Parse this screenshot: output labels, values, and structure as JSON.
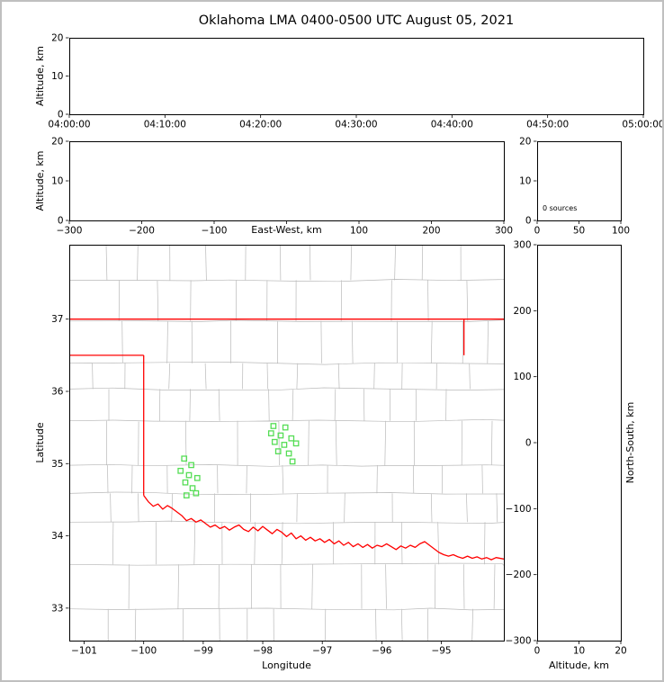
{
  "title": "Oklahoma LMA 0400-0500 UTC August 05, 2021",
  "colors": {
    "background": "#ffffff",
    "frame_border": "#bfbfbf",
    "axis": "#000000",
    "county_lines": "#b9b9b9",
    "state_borders": "#ff0000",
    "stations": "#55dd55"
  },
  "chart_data": [
    {
      "id": "time_height",
      "type": "scatter",
      "xlabel": "",
      "ylabel": "Altitude, km",
      "xlim": [
        0,
        6
      ],
      "xticks": [
        0,
        1,
        2,
        3,
        4,
        5,
        6
      ],
      "xtick_labels": [
        "04:00:00",
        "04:10:00",
        "04:20:00",
        "04:30:00",
        "04:40:00",
        "04:50:00",
        "05:00:00"
      ],
      "ylim": [
        0,
        20
      ],
      "yticks": [
        0,
        10,
        20
      ],
      "points": []
    },
    {
      "id": "ew_height",
      "type": "scatter",
      "xlabel": "East-West, km",
      "ylabel": "Altitude, km",
      "xlim": [
        -300,
        300
      ],
      "xticks": [
        -300,
        -200,
        -100,
        0,
        100,
        200,
        300
      ],
      "xtick_labels": [
        "−300",
        "−200",
        "−100",
        "",
        "100",
        "200",
        "300"
      ],
      "ylim": [
        0,
        20
      ],
      "yticks": [
        0,
        10,
        20
      ],
      "points": []
    },
    {
      "id": "alt_histogram",
      "type": "line",
      "annotation": "0 sources",
      "xlim": [
        0,
        100
      ],
      "xticks": [
        0,
        50,
        100
      ],
      "ylim": [
        0,
        20
      ],
      "yticks": [
        0,
        10,
        20
      ],
      "points": []
    },
    {
      "id": "plan_view",
      "type": "scatter",
      "xlabel": "Longitude",
      "ylabel": "Latitude",
      "xlim": [
        -101.25,
        -93.95
      ],
      "xticks": [
        -101,
        -100,
        -99,
        -98,
        -97,
        -96,
        -95
      ],
      "ylim": [
        32.55,
        38.03
      ],
      "yticks": [
        33,
        34,
        35,
        36,
        37
      ],
      "stations": [
        [
          -97.82,
          35.52
        ],
        [
          -97.62,
          35.5
        ],
        [
          -97.86,
          35.42
        ],
        [
          -97.7,
          35.39
        ],
        [
          -97.52,
          35.35
        ],
        [
          -97.8,
          35.3
        ],
        [
          -97.64,
          35.26
        ],
        [
          -97.74,
          35.17
        ],
        [
          -97.56,
          35.14
        ],
        [
          -97.44,
          35.28
        ],
        [
          -97.5,
          35.03
        ],
        [
          -99.32,
          35.07
        ],
        [
          -99.2,
          34.98
        ],
        [
          -99.38,
          34.9
        ],
        [
          -99.24,
          34.84
        ],
        [
          -99.1,
          34.8
        ],
        [
          -99.3,
          34.74
        ],
        [
          -99.18,
          34.66
        ],
        [
          -99.28,
          34.56
        ],
        [
          -99.12,
          34.59
        ]
      ]
    },
    {
      "id": "ns_height",
      "type": "scatter",
      "xlabel": "Altitude, km",
      "ylabel": "North-South, km",
      "xlim": [
        0,
        20
      ],
      "xticks": [
        0,
        10,
        20
      ],
      "ylim": [
        -300,
        300
      ],
      "yticks": [
        -300,
        -200,
        -100,
        0,
        100,
        200,
        300
      ],
      "points": []
    }
  ],
  "map": {
    "state_borders": {
      "north": {
        "lat": 37.0,
        "lon_from": -101.25,
        "lon_to": -93.95
      },
      "panhandle_south": {
        "lat": 36.5,
        "lon_from": -101.25,
        "lon_to": -100.0
      },
      "west": {
        "lon": -100.0,
        "lat_from": 36.5,
        "lat_to": 34.56
      },
      "northeast": {
        "lon": -94.62,
        "lat_from": 37.0,
        "lat_to": 36.5
      },
      "red_river": [
        [
          -100.0,
          34.56
        ],
        [
          -99.92,
          34.47
        ],
        [
          -99.84,
          34.41
        ],
        [
          -99.76,
          34.44
        ],
        [
          -99.68,
          34.37
        ],
        [
          -99.6,
          34.42
        ],
        [
          -99.52,
          34.38
        ],
        [
          -99.44,
          34.33
        ],
        [
          -99.36,
          34.28
        ],
        [
          -99.28,
          34.21
        ],
        [
          -99.2,
          34.24
        ],
        [
          -99.12,
          34.19
        ],
        [
          -99.04,
          34.22
        ],
        [
          -98.96,
          34.17
        ],
        [
          -98.88,
          34.12
        ],
        [
          -98.8,
          34.15
        ],
        [
          -98.72,
          34.1
        ],
        [
          -98.64,
          34.13
        ],
        [
          -98.56,
          34.08
        ],
        [
          -98.48,
          34.12
        ],
        [
          -98.4,
          34.15
        ],
        [
          -98.32,
          34.09
        ],
        [
          -98.24,
          34.06
        ],
        [
          -98.16,
          34.12
        ],
        [
          -98.08,
          34.07
        ],
        [
          -98.0,
          34.13
        ],
        [
          -97.92,
          34.08
        ],
        [
          -97.84,
          34.03
        ],
        [
          -97.76,
          34.09
        ],
        [
          -97.68,
          34.05
        ],
        [
          -97.6,
          33.99
        ],
        [
          -97.52,
          34.04
        ],
        [
          -97.44,
          33.96
        ],
        [
          -97.36,
          34.0
        ],
        [
          -97.28,
          33.94
        ],
        [
          -97.2,
          33.98
        ],
        [
          -97.12,
          33.93
        ],
        [
          -97.04,
          33.96
        ],
        [
          -96.96,
          33.91
        ],
        [
          -96.88,
          33.95
        ],
        [
          -96.8,
          33.89
        ],
        [
          -96.72,
          33.93
        ],
        [
          -96.64,
          33.87
        ],
        [
          -96.56,
          33.91
        ],
        [
          -96.48,
          33.85
        ],
        [
          -96.4,
          33.89
        ],
        [
          -96.32,
          33.84
        ],
        [
          -96.24,
          33.88
        ],
        [
          -96.16,
          33.83
        ],
        [
          -96.08,
          33.87
        ],
        [
          -96.0,
          33.85
        ],
        [
          -95.92,
          33.89
        ],
        [
          -95.84,
          33.85
        ],
        [
          -95.76,
          33.81
        ],
        [
          -95.68,
          33.86
        ],
        [
          -95.6,
          33.83
        ],
        [
          -95.52,
          33.87
        ],
        [
          -95.44,
          33.84
        ],
        [
          -95.36,
          33.89
        ],
        [
          -95.28,
          33.92
        ],
        [
          -95.2,
          33.87
        ],
        [
          -95.12,
          33.82
        ],
        [
          -95.04,
          33.77
        ],
        [
          -94.96,
          33.74
        ],
        [
          -94.88,
          33.72
        ],
        [
          -94.8,
          33.74
        ],
        [
          -94.72,
          33.71
        ],
        [
          -94.64,
          33.69
        ],
        [
          -94.56,
          33.72
        ],
        [
          -94.48,
          33.69
        ],
        [
          -94.4,
          33.71
        ],
        [
          -94.32,
          33.68
        ],
        [
          -94.24,
          33.7
        ],
        [
          -94.16,
          33.67
        ],
        [
          -94.08,
          33.7
        ],
        [
          -93.95,
          33.68
        ]
      ]
    }
  }
}
